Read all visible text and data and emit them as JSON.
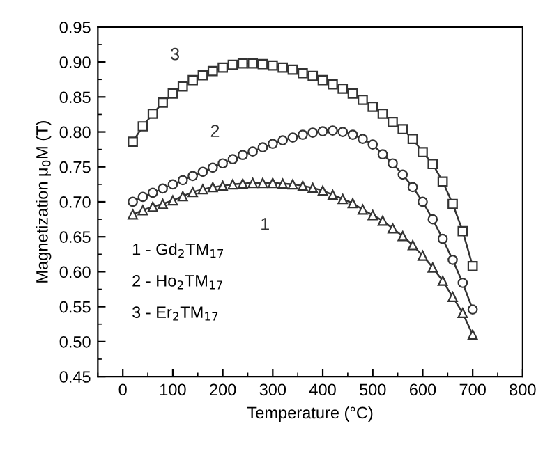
{
  "chart_data": {
    "type": "line",
    "xlabel": "Temperature (°C)",
    "ylabel": "Magnetization μ$_{0}$M (T)",
    "x": [
      20,
      40,
      60,
      80,
      100,
      120,
      140,
      160,
      180,
      200,
      220,
      240,
      260,
      280,
      300,
      320,
      340,
      360,
      380,
      400,
      420,
      440,
      460,
      480,
      500,
      520,
      540,
      560,
      580,
      600,
      620,
      640,
      660,
      680,
      700
    ],
    "series": [
      {
        "name": "1",
        "color": "#333333",
        "marker": "triangle",
        "values": [
          0.682,
          0.688,
          0.693,
          0.697,
          0.702,
          0.708,
          0.714,
          0.718,
          0.721,
          0.723,
          0.725,
          0.726,
          0.727,
          0.727,
          0.727,
          0.726,
          0.725,
          0.723,
          0.72,
          0.716,
          0.71,
          0.704,
          0.698,
          0.689,
          0.681,
          0.673,
          0.662,
          0.651,
          0.638,
          0.623,
          0.606,
          0.587,
          0.564,
          0.541,
          0.51
        ]
      },
      {
        "name": "2",
        "color": "#333333",
        "marker": "circle",
        "values": [
          0.7,
          0.707,
          0.713,
          0.719,
          0.725,
          0.731,
          0.737,
          0.743,
          0.749,
          0.755,
          0.761,
          0.767,
          0.772,
          0.778,
          0.783,
          0.788,
          0.792,
          0.796,
          0.799,
          0.801,
          0.802,
          0.8,
          0.796,
          0.79,
          0.782,
          0.768,
          0.755,
          0.739,
          0.721,
          0.7,
          0.675,
          0.647,
          0.617,
          0.584,
          0.546
        ]
      },
      {
        "name": "3",
        "color": "#333333",
        "marker": "square",
        "values": [
          0.786,
          0.808,
          0.826,
          0.842,
          0.855,
          0.865,
          0.874,
          0.881,
          0.887,
          0.892,
          0.896,
          0.898,
          0.898,
          0.897,
          0.895,
          0.892,
          0.889,
          0.884,
          0.88,
          0.874,
          0.868,
          0.862,
          0.855,
          0.846,
          0.836,
          0.826,
          0.814,
          0.804,
          0.79,
          0.771,
          0.754,
          0.729,
          0.697,
          0.658,
          0.608
        ]
      }
    ],
    "annotations": [
      "1 - Gd$_{2}$TM$_{17}$",
      "2 - Ho$_{2}$TM$_{17}$",
      "3 - Er$_{2}$TM$_{17}$"
    ],
    "xlim": [
      -50,
      800
    ],
    "xticks": [
      0,
      100,
      200,
      300,
      400,
      500,
      600,
      700,
      800
    ],
    "ylim": [
      0.45,
      0.95
    ],
    "yticks": [
      {
        "value": 0.45,
        "label": "0.45"
      },
      {
        "value": 0.5,
        "label": "0.50"
      },
      {
        "value": 0.55,
        "label": "0.55"
      },
      {
        "value": 0.6,
        "label": "0.60"
      },
      {
        "value": 0.65,
        "label": "0.65"
      },
      {
        "value": 0.7,
        "label": "0.70"
      },
      {
        "value": 0.75,
        "label": "0.75"
      },
      {
        "value": 0.8,
        "label": "0.80"
      },
      {
        "value": 0.85,
        "label": "0.85"
      },
      {
        "value": 0.9,
        "label": "0.90"
      },
      {
        "value": 0.95,
        "label": "0.95"
      }
    ],
    "grid": false,
    "legend": false
  }
}
